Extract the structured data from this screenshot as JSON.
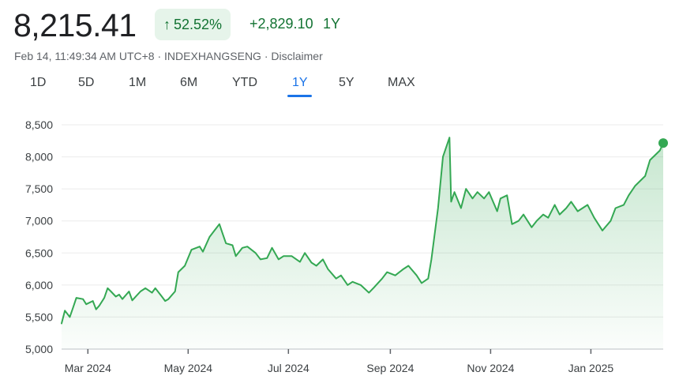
{
  "quote": {
    "price": "8,215.41",
    "percent_change": "52.52%",
    "abs_change": "+2,829.10",
    "period": "1Y",
    "timestamp": "Feb 14, 11:49:34 AM UTC+8",
    "symbol": "INDEXHANGSENG",
    "disclaimer": "Disclaimer",
    "separator": " · "
  },
  "tabs": [
    "1D",
    "5D",
    "1M",
    "6M",
    "YTD",
    "1Y",
    "5Y",
    "MAX"
  ],
  "active_tab": "1Y",
  "colors": {
    "line": "#34a853",
    "positive_text": "#137333",
    "positive_bg": "#e6f4ea",
    "active_tab": "#1a73e8",
    "grid": "#ebebeb"
  },
  "chart_data": {
    "type": "area",
    "title": "",
    "xlabel": "",
    "ylabel": "",
    "ylim": [
      5000,
      8500
    ],
    "y_ticks": [
      5000,
      5500,
      6000,
      6500,
      7000,
      7500,
      8000,
      8500
    ],
    "y_tick_labels": [
      "5,000",
      "5,500",
      "6,000",
      "6,500",
      "7,000",
      "7,500",
      "8,000",
      "8,500"
    ],
    "x_ticks": [
      "2024-03-01",
      "2024-05-01",
      "2024-07-01",
      "2024-09-01",
      "2024-11-01",
      "2025-01-01"
    ],
    "x_tick_labels": [
      "Mar 2024",
      "May 2024",
      "Jul 2024",
      "Sep 2024",
      "Nov 2024",
      "Jan 2025"
    ],
    "x_range": [
      "2024-02-14",
      "2025-02-14"
    ],
    "grid": true,
    "series": [
      {
        "x": [
          "2024-02-14",
          "2024-02-16",
          "2024-02-19",
          "2024-02-21",
          "2024-02-23",
          "2024-02-27",
          "2024-02-29",
          "2024-03-04",
          "2024-03-06",
          "2024-03-08",
          "2024-03-11",
          "2024-03-13",
          "2024-03-15",
          "2024-03-18",
          "2024-03-20",
          "2024-03-22",
          "2024-03-26",
          "2024-03-28",
          "2024-04-02",
          "2024-04-05",
          "2024-04-09",
          "2024-04-11",
          "2024-04-15",
          "2024-04-17",
          "2024-04-19",
          "2024-04-23",
          "2024-04-25",
          "2024-04-29",
          "2024-05-03",
          "2024-05-08",
          "2024-05-10",
          "2024-05-14",
          "2024-05-17",
          "2024-05-20",
          "2024-05-22",
          "2024-05-24",
          "2024-05-28",
          "2024-05-30",
          "2024-06-03",
          "2024-06-06",
          "2024-06-11",
          "2024-06-14",
          "2024-06-18",
          "2024-06-21",
          "2024-06-25",
          "2024-06-28",
          "2024-07-03",
          "2024-07-08",
          "2024-07-11",
          "2024-07-15",
          "2024-07-18",
          "2024-07-22",
          "2024-07-25",
          "2024-07-30",
          "2024-08-02",
          "2024-08-06",
          "2024-08-09",
          "2024-08-14",
          "2024-08-19",
          "2024-08-22",
          "2024-08-27",
          "2024-08-30",
          "2024-09-04",
          "2024-09-09",
          "2024-09-12",
          "2024-09-17",
          "2024-09-20",
          "2024-09-24",
          "2024-09-26",
          "2024-09-30",
          "2024-10-03",
          "2024-10-07",
          "2024-10-08",
          "2024-10-10",
          "2024-10-14",
          "2024-10-17",
          "2024-10-21",
          "2024-10-24",
          "2024-10-28",
          "2024-10-31",
          "2024-11-05",
          "2024-11-07",
          "2024-11-11",
          "2024-11-14",
          "2024-11-18",
          "2024-11-21",
          "2024-11-26",
          "2024-11-29",
          "2024-12-03",
          "2024-12-06",
          "2024-12-10",
          "2024-12-13",
          "2024-12-17",
          "2024-12-20",
          "2024-12-24",
          "2024-12-30",
          "2025-01-03",
          "2025-01-08",
          "2025-01-13",
          "2025-01-16",
          "2025-01-21",
          "2025-01-24",
          "2025-01-28",
          "2025-02-03",
          "2025-02-06",
          "2025-02-10",
          "2025-02-12",
          "2025-02-14"
        ],
        "values": [
          5400,
          5600,
          5500,
          5650,
          5800,
          5780,
          5700,
          5750,
          5620,
          5680,
          5800,
          5950,
          5900,
          5820,
          5850,
          5780,
          5900,
          5760,
          5900,
          5950,
          5880,
          5950,
          5820,
          5750,
          5780,
          5900,
          6200,
          6300,
          6550,
          6600,
          6520,
          6750,
          6850,
          6950,
          6800,
          6650,
          6620,
          6450,
          6580,
          6600,
          6500,
          6400,
          6420,
          6580,
          6400,
          6450,
          6450,
          6360,
          6500,
          6350,
          6300,
          6400,
          6250,
          6100,
          6150,
          6000,
          6050,
          6000,
          5880,
          5960,
          6100,
          6200,
          6150,
          6250,
          6300,
          6150,
          6030,
          6100,
          6400,
          7200,
          8000,
          8300,
          7300,
          7450,
          7200,
          7500,
          7350,
          7450,
          7350,
          7450,
          7150,
          7350,
          7400,
          6950,
          7000,
          7100,
          6900,
          7000,
          7100,
          7050,
          7250,
          7100,
          7200,
          7300,
          7150,
          7250,
          7050,
          6850,
          7000,
          7200,
          7250,
          7400,
          7550,
          7700,
          7950,
          8050,
          8100,
          8215.41
        ]
      }
    ]
  }
}
